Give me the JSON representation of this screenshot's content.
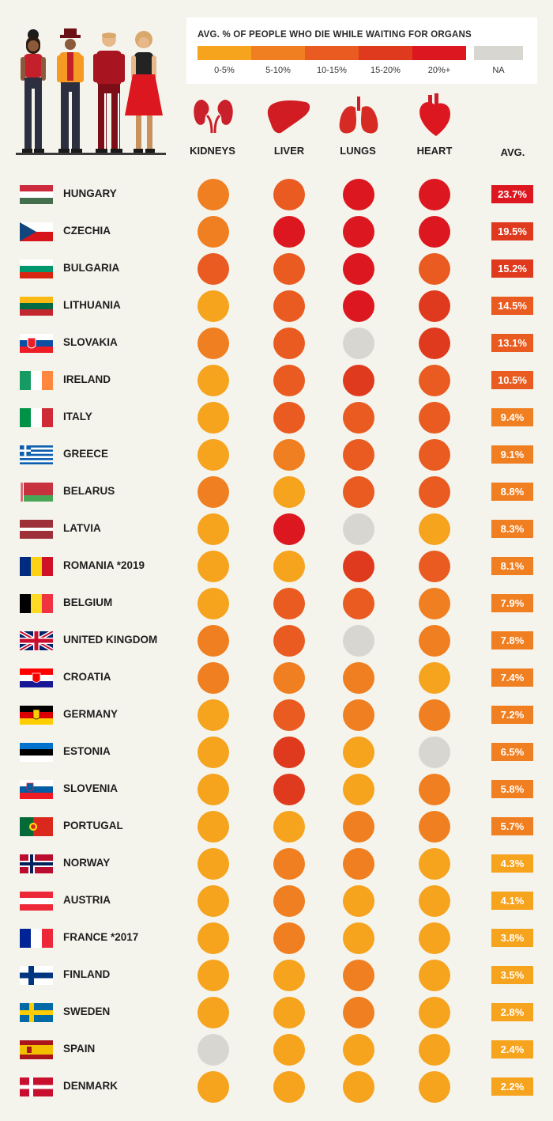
{
  "chart_data": {
    "type": "table",
    "title": "AVG. % OF PEOPLE WHO DIE WHILE WAITING FOR ORGANS",
    "legend": [
      {
        "label": "0-5%",
        "color": "#f6a31e"
      },
      {
        "label": "5-10%",
        "color": "#f07f21"
      },
      {
        "label": "10-15%",
        "color": "#e95b20"
      },
      {
        "label": "15-20%",
        "color": "#e03a1e"
      },
      {
        "label": "20%+",
        "color": "#dd1720"
      },
      {
        "label": "NA",
        "color": "#d8d6d0"
      }
    ],
    "columns": [
      "KIDNEYS",
      "LIVER",
      "LUNGS",
      "HEART",
      "AVG."
    ],
    "rows": [
      {
        "country": "HUNGARY",
        "values": [
          1,
          2,
          4,
          4
        ],
        "avg": "23.7%"
      },
      {
        "country": "CZECHIA",
        "values": [
          1,
          4,
          4,
          4
        ],
        "avg": "19.5%"
      },
      {
        "country": "BULGARIA",
        "values": [
          2,
          2,
          4,
          2
        ],
        "avg": "15.2%"
      },
      {
        "country": "LITHUANIA",
        "values": [
          0,
          2,
          4,
          3
        ],
        "avg": "14.5%"
      },
      {
        "country": "SLOVAKIA",
        "values": [
          1,
          2,
          5,
          3
        ],
        "avg": "13.1%"
      },
      {
        "country": "IRELAND",
        "values": [
          0,
          2,
          3,
          2
        ],
        "avg": "10.5%"
      },
      {
        "country": "ITALY",
        "values": [
          0,
          2,
          2,
          2
        ],
        "avg": "9.4%"
      },
      {
        "country": "GREECE",
        "values": [
          0,
          1,
          2,
          2
        ],
        "avg": "9.1%"
      },
      {
        "country": "BELARUS",
        "values": [
          1,
          0,
          2,
          2
        ],
        "avg": "8.8%"
      },
      {
        "country": "LATVIA",
        "values": [
          0,
          4,
          5,
          0
        ],
        "avg": "8.3%"
      },
      {
        "country": "ROMANIA *2019",
        "values": [
          0,
          0,
          3,
          2
        ],
        "avg": "8.1%"
      },
      {
        "country": "BELGIUM",
        "values": [
          0,
          2,
          2,
          1
        ],
        "avg": "7.9%"
      },
      {
        "country": "UNITED KINGDOM",
        "values": [
          1,
          2,
          5,
          1
        ],
        "avg": "7.8%"
      },
      {
        "country": "CROATIA",
        "values": [
          1,
          1,
          1,
          0
        ],
        "avg": "7.4%"
      },
      {
        "country": "GERMANY",
        "values": [
          0,
          2,
          1,
          1
        ],
        "avg": "7.2%"
      },
      {
        "country": "ESTONIA",
        "values": [
          0,
          3,
          0,
          5
        ],
        "avg": "6.5%"
      },
      {
        "country": "SLOVENIA",
        "values": [
          0,
          3,
          0,
          1
        ],
        "avg": "5.8%"
      },
      {
        "country": "PORTUGAL",
        "values": [
          0,
          0,
          1,
          1
        ],
        "avg": "5.7%"
      },
      {
        "country": "NORWAY",
        "values": [
          0,
          1,
          1,
          0
        ],
        "avg": "4.3%"
      },
      {
        "country": "AUSTRIA",
        "values": [
          0,
          1,
          0,
          0
        ],
        "avg": "4.1%"
      },
      {
        "country": "FRANCE *2017",
        "values": [
          0,
          1,
          0,
          0
        ],
        "avg": "3.8%"
      },
      {
        "country": "FINLAND",
        "values": [
          0,
          0,
          1,
          0
        ],
        "avg": "3.5%"
      },
      {
        "country": "SWEDEN",
        "values": [
          0,
          0,
          1,
          0
        ],
        "avg": "2.8%"
      },
      {
        "country": "SPAIN",
        "values": [
          5,
          0,
          0,
          0
        ],
        "avg": "2.4%"
      },
      {
        "country": "DENMARK",
        "values": [
          0,
          0,
          0,
          0
        ],
        "avg": "2.2%"
      }
    ]
  },
  "icons": {
    "kidneys": "kidneys-icon",
    "liver": "liver-icon",
    "lungs": "lungs-icon",
    "heart": "heart-icon",
    "people": "people-illustration"
  }
}
